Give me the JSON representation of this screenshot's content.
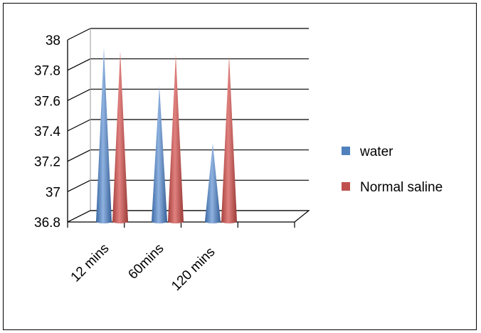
{
  "chart_data": {
    "type": "bar",
    "categories": [
      "12 mins",
      "60mins",
      "120 mins"
    ],
    "series": [
      {
        "name": "water",
        "values": [
          37.9,
          37.65,
          37.27
        ],
        "color": "#4F81BD"
      },
      {
        "name": "Normal saline",
        "values": [
          37.88,
          37.86,
          37.85
        ],
        "color": "#C0504D"
      }
    ],
    "ylim": [
      36.8,
      38
    ],
    "yticks": [
      "36.8",
      "37",
      "37.2",
      "37.4",
      "37.6",
      "37.8",
      "38"
    ],
    "grid": true,
    "legend": "right",
    "mark_shape": "cone-3d"
  }
}
